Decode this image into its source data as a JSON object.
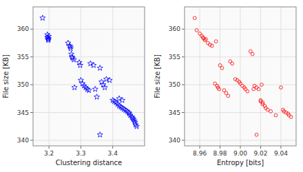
{
  "chart_data": [
    {
      "type": "scatter",
      "x": [
        3.18,
        3.195,
        3.195,
        3.197,
        3.198,
        3.199,
        3.199,
        3.26,
        3.265,
        3.267,
        3.268,
        3.27,
        3.272,
        3.274,
        3.278,
        3.28,
        3.295,
        3.298,
        3.3,
        3.305,
        3.31,
        3.315,
        3.32,
        3.325,
        3.33,
        3.34,
        3.345,
        3.36,
        3.365,
        3.37,
        3.375,
        3.38,
        3.39,
        3.4,
        3.405,
        3.41,
        3.415,
        3.42,
        3.425,
        3.43,
        3.435,
        3.44,
        3.445,
        3.45,
        3.452,
        3.455,
        3.46,
        3.462,
        3.465,
        3.468,
        3.47,
        3.472,
        3.475,
        3.42,
        3.43,
        3.35,
        3.36
      ],
      "values": [
        362,
        359,
        358.5,
        358.2,
        358.0,
        358.7,
        358.3,
        357.5,
        357,
        356.8,
        356.5,
        355.5,
        355.0,
        354.8,
        354.5,
        349.5,
        354,
        353.5,
        350.8,
        350.2,
        349.8,
        349.5,
        349.2,
        349.0,
        353.8,
        353.5,
        349.2,
        353.0,
        350.5,
        350.0,
        349.5,
        351.0,
        350.8,
        347.2,
        347.0,
        346.8,
        346.5,
        346.2,
        346.0,
        345.8,
        345.6,
        345.4,
        345.2,
        345.0,
        344.8,
        344.5,
        344.2,
        344.0,
        343.8,
        343.5,
        343.2,
        342.8,
        342.5,
        347.5,
        347.2,
        347.8,
        341.0
      ],
      "color": "blue",
      "marker": "star",
      "x_label": "Clustering distance",
      "y_label": "File size [KB]",
      "xlim": [
        3.15,
        3.5
      ],
      "ylim": [
        339,
        364
      ],
      "xticks": [
        3.2,
        3.3,
        3.4
      ],
      "yticks": [
        340,
        345,
        350,
        355,
        360
      ],
      "grid": true
    },
    {
      "type": "scatter",
      "x": [
        8.955,
        8.957,
        8.96,
        8.962,
        8.963,
        8.964,
        8.965,
        8.968,
        8.97,
        8.972,
        8.975,
        8.977,
        8.978,
        8.979,
        8.98,
        8.982,
        8.984,
        8.986,
        8.988,
        8.99,
        8.992,
        8.995,
        8.997,
        8.999,
        9.0,
        9.002,
        9.004,
        9.005,
        9.007,
        9.01,
        9.012,
        9.014,
        9.016,
        9.018,
        9.02,
        9.02,
        9.022,
        9.022,
        9.024,
        9.025,
        9.027,
        9.03,
        9.035,
        9.04,
        9.042,
        9.043,
        9.045,
        9.047,
        9.048,
        9.05,
        8.966,
        8.976,
        9.013,
        9.016,
        9.021
      ],
      "values": [
        362,
        359.8,
        359.2,
        358.8,
        358.5,
        358.3,
        358.0,
        357.5,
        357.2,
        357.0,
        350.2,
        349.8,
        349.5,
        349.2,
        353.5,
        353.0,
        349.0,
        348.5,
        348.0,
        354.2,
        353.8,
        351.0,
        350.8,
        350.5,
        350.2,
        349.8,
        349.5,
        349.2,
        348.8,
        356.0,
        355.5,
        349.8,
        349.5,
        349.2,
        347.2,
        347.0,
        346.8,
        346.5,
        346.2,
        345.8,
        345.5,
        345.2,
        344.5,
        349.5,
        345.5,
        345.2,
        345.0,
        344.8,
        344.5,
        344.2,
        358.2,
        357.8,
        349.2,
        341.0,
        350.0
      ],
      "color": "red",
      "marker": "circle",
      "x_label": "Entropy [bits]",
      "y_label": "File size [KB]",
      "xlim": [
        8.945,
        9.055
      ],
      "ylim": [
        339,
        364
      ],
      "xticks": [
        8.96,
        8.98,
        {
          "value": 9.0,
          "label": "9.00"
        },
        9.02,
        9.04
      ],
      "yticks": [
        340,
        345,
        350,
        355,
        360
      ],
      "grid": true
    }
  ]
}
